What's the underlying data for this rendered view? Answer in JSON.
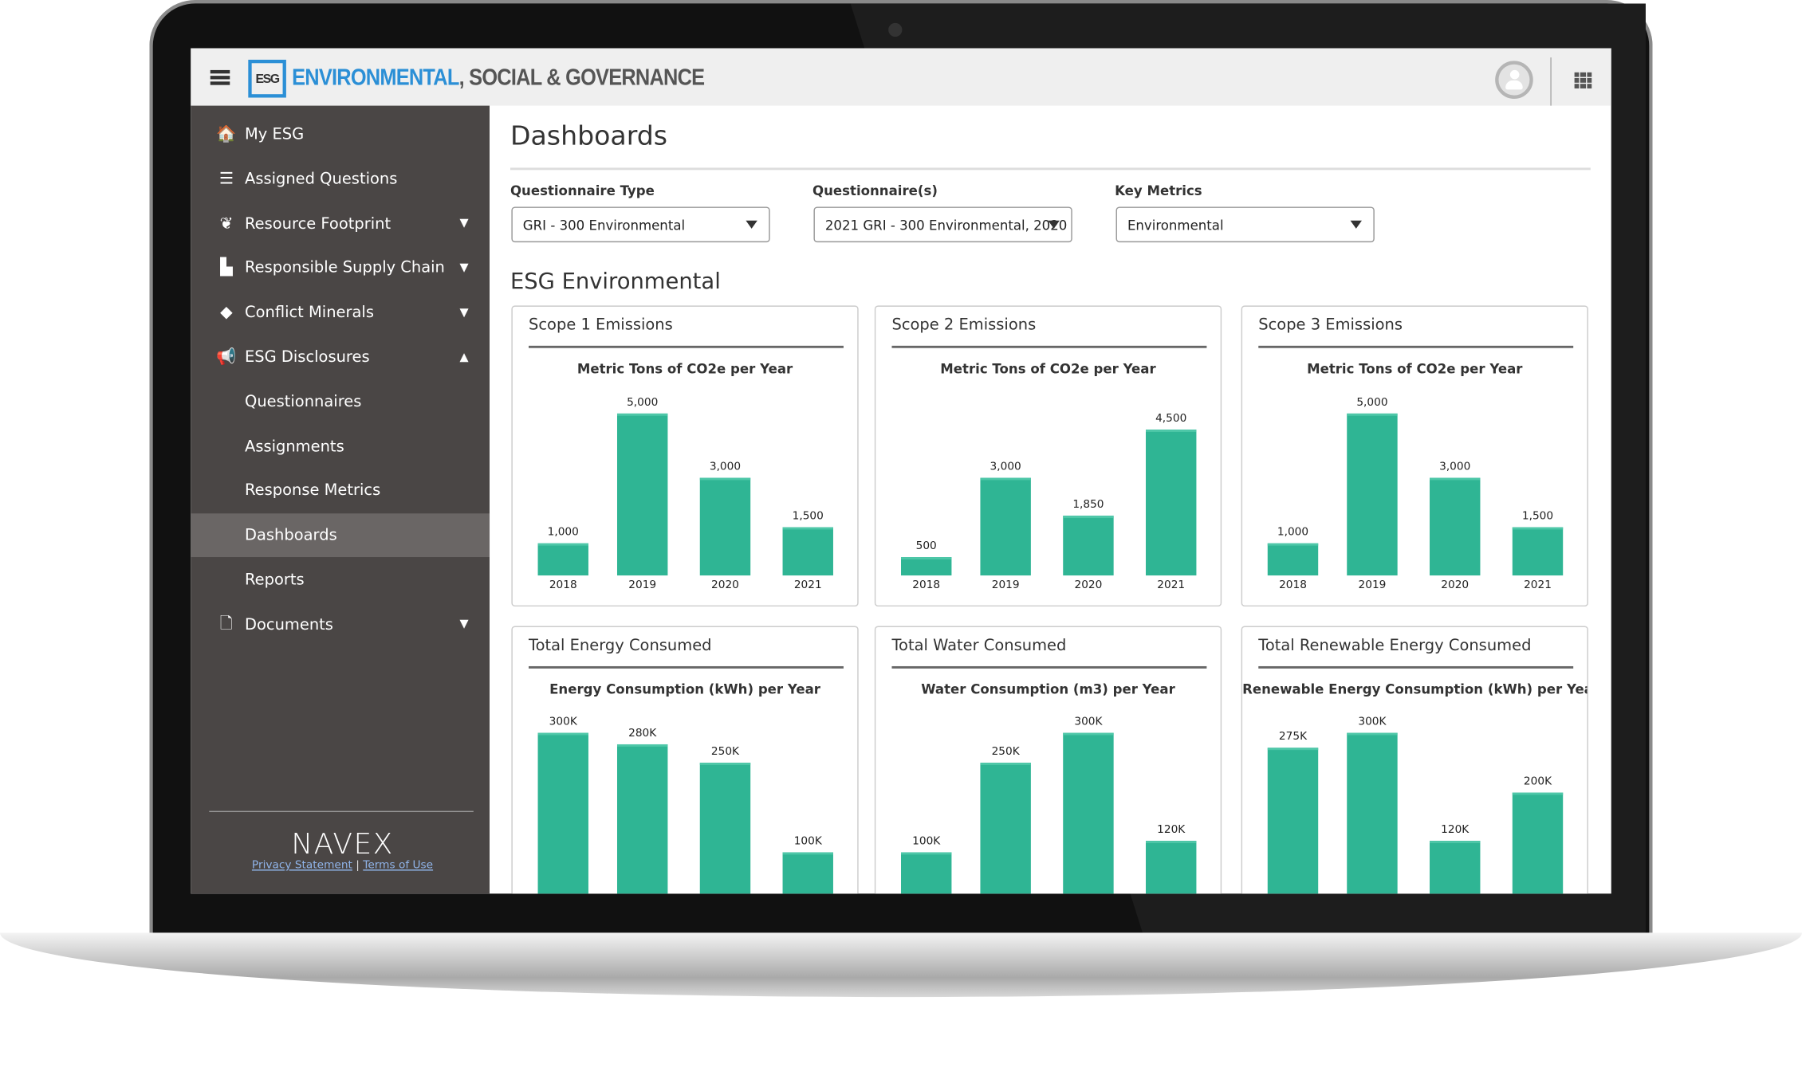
{
  "header": {
    "logo_text": "ESG",
    "title_accent": "ENVIRONMENTAL",
    "title_rest": ", SOCIAL & GOVERNANCE",
    "icons": [
      "menu-icon",
      "user-avatar-icon",
      "apps-grid-icon"
    ]
  },
  "sidebar": {
    "items": [
      {
        "label": "My ESG",
        "icon": "🏠",
        "chevron": ""
      },
      {
        "label": "Assigned Questions",
        "icon": "☰",
        "chevron": ""
      },
      {
        "label": "Resource Footprint",
        "icon": "❦",
        "chevron": "▼"
      },
      {
        "label": "Responsible Supply Chain",
        "icon": "▙",
        "chevron": "▼"
      },
      {
        "label": "Conflict Minerals",
        "icon": "◆",
        "chevron": "▼"
      },
      {
        "label": "ESG Disclosures",
        "icon": "📢",
        "chevron": "▲"
      },
      {
        "label": "Questionnaires",
        "icon": "",
        "chevron": ""
      },
      {
        "label": "Assignments",
        "icon": "",
        "chevron": ""
      },
      {
        "label": "Response Metrics",
        "icon": "",
        "chevron": ""
      },
      {
        "label": "Dashboards",
        "icon": "",
        "chevron": "",
        "active": true
      },
      {
        "label": "Reports",
        "icon": "",
        "chevron": ""
      },
      {
        "label": "Documents",
        "icon": "🗋",
        "chevron": "▼"
      }
    ],
    "brand": "NAVEX",
    "privacy": "Privacy Statement",
    "separator": "|",
    "terms": "Terms of Use"
  },
  "main": {
    "title": "Dashboards",
    "filters": [
      {
        "label": "Questionnaire Type",
        "value": "GRI - 300 Environmental"
      },
      {
        "label": "Questionnaire(s)",
        "value": "2021 GRI - 300 Environmental, 2020"
      },
      {
        "label": "Key Metrics",
        "value": "Environmental"
      }
    ],
    "section_title": "ESG Environmental"
  },
  "colors": {
    "bar": "#2fb594",
    "accent": "#2b8fd6",
    "sidebar": "#4a4645"
  },
  "chart_data": [
    {
      "type": "bar",
      "card_title": "Scope 1 Emissions",
      "title": "Metric Tons of CO2e per Year",
      "categories": [
        "2018",
        "2019",
        "2020",
        "2021"
      ],
      "values": [
        1000,
        5000,
        3000,
        1500
      ],
      "labels": [
        "1,000",
        "5,000",
        "3,000",
        "1,500"
      ]
    },
    {
      "type": "bar",
      "card_title": "Scope 2 Emissions",
      "title": "Metric Tons of CO2e per Year",
      "categories": [
        "2018",
        "2019",
        "2020",
        "2021"
      ],
      "values": [
        500,
        3000,
        1850,
        4500
      ],
      "labels": [
        "500",
        "3,000",
        "1,850",
        "4,500"
      ]
    },
    {
      "type": "bar",
      "card_title": "Scope 3 Emissions",
      "title": "Metric Tons of CO2e per Year",
      "categories": [
        "2018",
        "2019",
        "2020",
        "2021"
      ],
      "values": [
        1000,
        5000,
        3000,
        1500
      ],
      "labels": [
        "1,000",
        "5,000",
        "3,000",
        "1,500"
      ]
    },
    {
      "type": "bar",
      "card_title": "Total Energy Consumed",
      "title": "Energy Consumption (kWh) per Year",
      "values": [
        300000,
        280000,
        250000,
        100000
      ],
      "labels": [
        "300K",
        "280K",
        "250K",
        "100K"
      ]
    },
    {
      "type": "bar",
      "card_title": "Total Water Consumed",
      "title": "Water Consumption (m3) per Year",
      "values": [
        100000,
        250000,
        300000,
        120000
      ],
      "labels": [
        "100K",
        "250K",
        "300K",
        "120K"
      ]
    },
    {
      "type": "bar",
      "card_title": "Total Renewable Energy Consumed",
      "title": "Renewable Energy Consumption (kWh) per Year",
      "values": [
        275000,
        300000,
        120000,
        200000
      ],
      "labels": [
        "275K",
        "300K",
        "120K",
        "200K"
      ]
    }
  ]
}
